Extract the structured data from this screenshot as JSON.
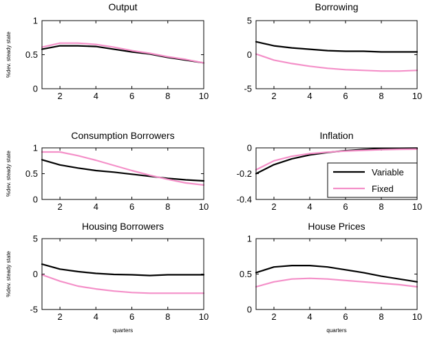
{
  "chart_data": [
    {
      "type": "line",
      "title": "Output",
      "ylabel": "%dev. steady state",
      "xlabel": "",
      "x": [
        1,
        2,
        3,
        4,
        5,
        6,
        7,
        8,
        9,
        10
      ],
      "xlim": [
        1,
        10
      ],
      "xticks": [
        2,
        4,
        6,
        8,
        10
      ],
      "ylim": [
        0,
        1
      ],
      "yticks": [
        0,
        0.5,
        1
      ],
      "series": [
        {
          "name": "Variable",
          "color": "#000000",
          "values": [
            0.58,
            0.63,
            0.63,
            0.62,
            0.58,
            0.54,
            0.51,
            0.46,
            0.42,
            0.38
          ]
        },
        {
          "name": "Fixed",
          "color": "#f48fc8",
          "values": [
            0.61,
            0.67,
            0.67,
            0.65,
            0.61,
            0.56,
            0.52,
            0.47,
            0.43,
            0.38
          ]
        }
      ]
    },
    {
      "type": "line",
      "title": "Borrowing",
      "ylabel": "",
      "xlabel": "",
      "x": [
        1,
        2,
        3,
        4,
        5,
        6,
        7,
        8,
        9,
        10
      ],
      "xlim": [
        1,
        10
      ],
      "xticks": [
        2,
        4,
        6,
        8,
        10
      ],
      "ylim": [
        -5,
        5
      ],
      "yticks": [
        -5,
        0,
        5
      ],
      "series": [
        {
          "name": "Variable",
          "color": "#000000",
          "values": [
            1.9,
            1.3,
            1.0,
            0.8,
            0.6,
            0.5,
            0.5,
            0.4,
            0.4,
            0.4
          ]
        },
        {
          "name": "Fixed",
          "color": "#f48fc8",
          "values": [
            0.1,
            -0.8,
            -1.3,
            -1.7,
            -2.0,
            -2.2,
            -2.3,
            -2.4,
            -2.4,
            -2.3
          ]
        }
      ]
    },
    {
      "type": "line",
      "title": "Consumption Borrowers",
      "ylabel": "%dev. steady state",
      "xlabel": "",
      "x": [
        1,
        2,
        3,
        4,
        5,
        6,
        7,
        8,
        9,
        10
      ],
      "xlim": [
        1,
        10
      ],
      "xticks": [
        2,
        4,
        6,
        8,
        10
      ],
      "ylim": [
        0,
        1
      ],
      "yticks": [
        0,
        0.5,
        1
      ],
      "series": [
        {
          "name": "Variable",
          "color": "#000000",
          "values": [
            0.77,
            0.67,
            0.61,
            0.56,
            0.53,
            0.49,
            0.45,
            0.41,
            0.38,
            0.36
          ]
        },
        {
          "name": "Fixed",
          "color": "#f48fc8",
          "values": [
            0.92,
            0.92,
            0.85,
            0.76,
            0.66,
            0.56,
            0.47,
            0.39,
            0.32,
            0.28
          ]
        }
      ]
    },
    {
      "type": "line",
      "title": "Inflation",
      "ylabel": "",
      "xlabel": "",
      "x": [
        1,
        2,
        3,
        4,
        5,
        6,
        7,
        8,
        9,
        10
      ],
      "xlim": [
        1,
        10
      ],
      "xticks": [
        2,
        4,
        6,
        8,
        10
      ],
      "ylim": [
        -0.4,
        0
      ],
      "yticks": [
        -0.4,
        -0.2,
        0
      ],
      "series": [
        {
          "name": "Variable",
          "color": "#000000",
          "values": [
            -0.2,
            -0.13,
            -0.085,
            -0.055,
            -0.035,
            -0.022,
            -0.012,
            -0.006,
            -0.003,
            -0.002
          ]
        },
        {
          "name": "Fixed",
          "color": "#f48fc8",
          "values": [
            -0.17,
            -0.1,
            -0.065,
            -0.045,
            -0.033,
            -0.025,
            -0.019,
            -0.014,
            -0.011,
            -0.01
          ]
        }
      ]
    },
    {
      "type": "line",
      "title": "Housing Borrowers",
      "ylabel": "%dev. steady state",
      "xlabel": "quarters",
      "x": [
        1,
        2,
        3,
        4,
        5,
        6,
        7,
        8,
        9,
        10
      ],
      "xlim": [
        1,
        10
      ],
      "xticks": [
        2,
        4,
        6,
        8,
        10
      ],
      "ylim": [
        -5,
        5
      ],
      "yticks": [
        -5,
        0,
        5
      ],
      "series": [
        {
          "name": "Variable",
          "color": "#000000",
          "values": [
            1.4,
            0.7,
            0.35,
            0.1,
            -0.05,
            -0.1,
            -0.2,
            -0.1,
            -0.1,
            -0.1
          ]
        },
        {
          "name": "Fixed",
          "color": "#f48fc8",
          "values": [
            -0.1,
            -1.0,
            -1.7,
            -2.1,
            -2.4,
            -2.6,
            -2.7,
            -2.7,
            -2.7,
            -2.7
          ]
        }
      ]
    },
    {
      "type": "line",
      "title": "House Prices",
      "ylabel": "",
      "xlabel": "quarters",
      "x": [
        1,
        2,
        3,
        4,
        5,
        6,
        7,
        8,
        9,
        10
      ],
      "xlim": [
        1,
        10
      ],
      "xticks": [
        2,
        4,
        6,
        8,
        10
      ],
      "ylim": [
        0,
        1
      ],
      "yticks": [
        0,
        0.5,
        1
      ],
      "series": [
        {
          "name": "Variable",
          "color": "#000000",
          "values": [
            0.52,
            0.6,
            0.62,
            0.62,
            0.6,
            0.56,
            0.52,
            0.47,
            0.43,
            0.39
          ]
        },
        {
          "name": "Fixed",
          "color": "#f48fc8",
          "values": [
            0.32,
            0.39,
            0.43,
            0.44,
            0.43,
            0.41,
            0.39,
            0.37,
            0.35,
            0.32
          ]
        }
      ]
    }
  ],
  "legend": {
    "placement": "bottom-right of Inflation panel",
    "entries": [
      {
        "label": "Variable",
        "color": "#000000"
      },
      {
        "label": "Fixed",
        "color": "#f48fc8"
      }
    ]
  }
}
